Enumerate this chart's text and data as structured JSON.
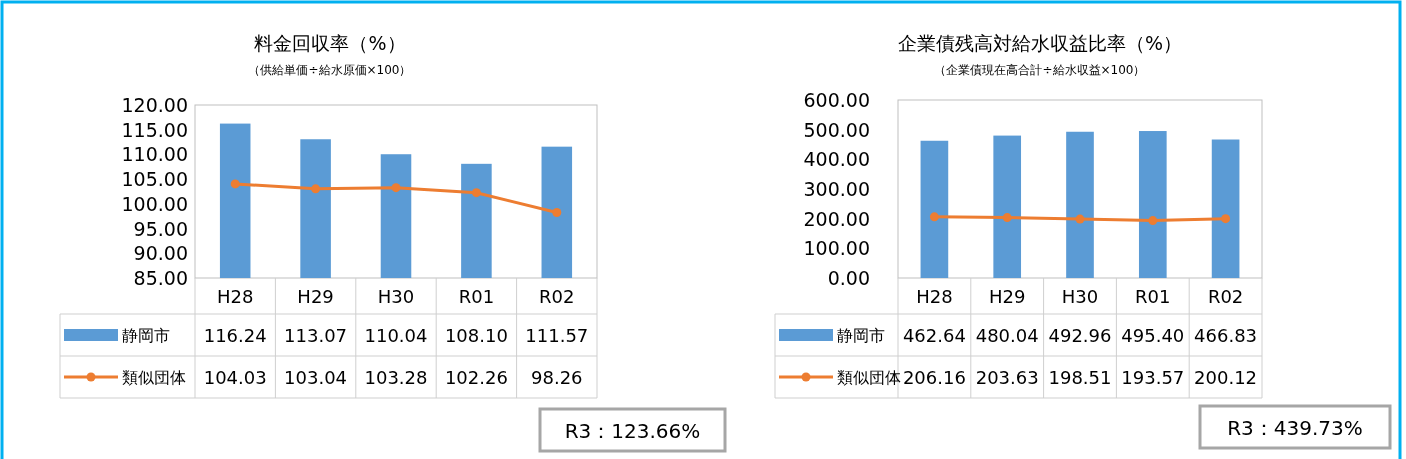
{
  "chart_data": [
    {
      "type": "bar",
      "title": "料金回収率（%）",
      "subtitle": "（供給単価÷給水原価×100）",
      "categories": [
        "H28",
        "H29",
        "H30",
        "R01",
        "R02"
      ],
      "series": [
        {
          "name": "静岡市",
          "color": "#5b9bd5",
          "values": [
            116.24,
            113.07,
            110.04,
            108.1,
            111.57
          ],
          "value_labels": [
            "116.24",
            "113.07",
            "110.04",
            "108.10",
            "111.57"
          ]
        },
        {
          "name": "類似団体",
          "type": "line",
          "color": "#ed7d31",
          "values": [
            104.03,
            103.04,
            103.28,
            102.26,
            98.26
          ],
          "value_labels": [
            "104.03",
            "103.04",
            "103.28",
            "102.26",
            "98.26"
          ]
        }
      ],
      "ylim": [
        85,
        120
      ],
      "yticks": [
        {
          "value": 85,
          "label": "85.00"
        },
        {
          "value": 90,
          "label": "90.00"
        },
        {
          "value": 95,
          "label": "95.00"
        },
        {
          "value": 100,
          "label": "100.00"
        },
        {
          "value": 105,
          "label": "105.00"
        },
        {
          "value": 110,
          "label": "110.00"
        },
        {
          "value": 115,
          "label": "115.00"
        },
        {
          "value": 120,
          "label": "120.00"
        }
      ],
      "marker": "circle",
      "legend": "bottom",
      "annotations": [
        "R3：123.66%"
      ]
    },
    {
      "type": "bar",
      "title": "企業債残高対給水収益比率（%）",
      "subtitle": "（企業債現在高合計÷給水収益×100）",
      "categories": [
        "H28",
        "H29",
        "H30",
        "R01",
        "R02"
      ],
      "series": [
        {
          "name": "静岡市",
          "color": "#5b9bd5",
          "values": [
            462.64,
            480.04,
            492.96,
            495.4,
            466.83
          ],
          "value_labels": [
            "462.64",
            "480.04",
            "492.96",
            "495.40",
            "466.83"
          ]
        },
        {
          "name": "類似団体",
          "type": "line",
          "color": "#ed7d31",
          "values": [
            206.16,
            203.63,
            198.51,
            193.57,
            200.12
          ],
          "value_labels": [
            "206.16",
            "203.63",
            "198.51",
            "193.57",
            "200.12"
          ]
        }
      ],
      "ylim": [
        0,
        600
      ],
      "yticks": [
        {
          "value": 0,
          "label": "0.00"
        },
        {
          "value": 100,
          "label": "100.00"
        },
        {
          "value": 200,
          "label": "200.00"
        },
        {
          "value": 300,
          "label": "300.00"
        },
        {
          "value": 400,
          "label": "400.00"
        },
        {
          "value": 500,
          "label": "500.00"
        },
        {
          "value": 600,
          "label": "600.00"
        }
      ],
      "marker": "circle",
      "legend": "bottom",
      "annotations": [
        "R3：439.73%"
      ]
    }
  ]
}
